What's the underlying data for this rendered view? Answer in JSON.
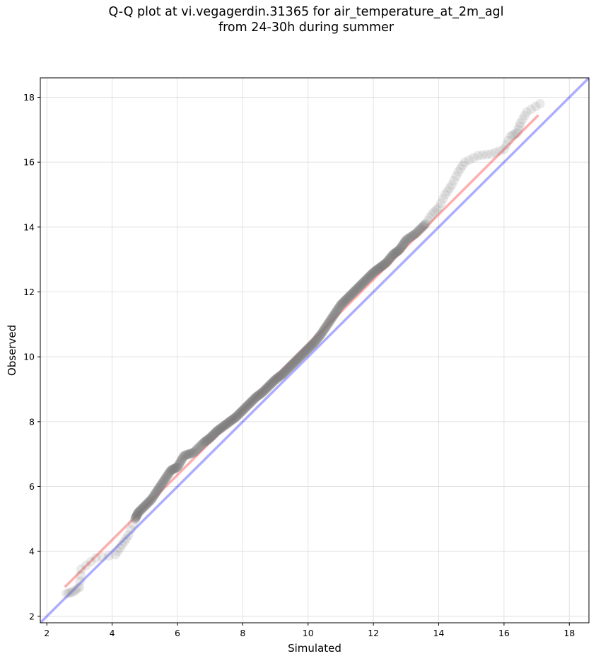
{
  "title": {
    "line1": "Q-Q plot at vi.vegagerdin.31365 for air_temperature_at_2m_agl",
    "line2": "from 24-30h during summer"
  },
  "chart_data": {
    "type": "scatter",
    "title": "Q-Q plot at vi.vegagerdin.31365 for air_temperature_at_2m_agl from 24-30h during summer",
    "xlabel": "Simulated",
    "ylabel": "Observed",
    "xlim": [
      1.8,
      18.6
    ],
    "ylim": [
      1.8,
      18.6
    ],
    "xticks": [
      2,
      4,
      6,
      8,
      10,
      12,
      14,
      16,
      18
    ],
    "yticks": [
      2,
      4,
      6,
      8,
      10,
      12,
      14,
      16,
      18
    ],
    "grid": true,
    "reference_line": {
      "name": "identity",
      "color": "#0000ff",
      "x": [
        1.8,
        18.6
      ],
      "y": [
        1.8,
        18.6
      ]
    },
    "fit_line": {
      "name": "linear fit",
      "color": "#ff0000",
      "x": [
        2.55,
        17.05
      ],
      "y": [
        2.9,
        17.45
      ]
    },
    "points": [
      [
        2.6,
        2.7
      ],
      [
        2.8,
        2.75
      ],
      [
        3.0,
        2.9
      ],
      [
        3.05,
        3.45
      ],
      [
        3.5,
        3.8
      ],
      [
        4.1,
        3.9
      ],
      [
        4.3,
        4.2
      ],
      [
        4.5,
        4.5
      ],
      [
        4.7,
        5.0
      ],
      [
        4.8,
        5.2
      ],
      [
        5.0,
        5.4
      ],
      [
        5.2,
        5.6
      ],
      [
        5.4,
        5.9
      ],
      [
        5.6,
        6.2
      ],
      [
        5.8,
        6.5
      ],
      [
        6.0,
        6.6
      ],
      [
        6.2,
        6.95
      ],
      [
        6.5,
        7.05
      ],
      [
        6.8,
        7.35
      ],
      [
        7.0,
        7.5
      ],
      [
        7.2,
        7.7
      ],
      [
        7.4,
        7.85
      ],
      [
        7.6,
        8.0
      ],
      [
        7.8,
        8.15
      ],
      [
        8.0,
        8.35
      ],
      [
        8.2,
        8.55
      ],
      [
        8.4,
        8.75
      ],
      [
        8.6,
        8.9
      ],
      [
        8.8,
        9.1
      ],
      [
        9.0,
        9.3
      ],
      [
        9.2,
        9.45
      ],
      [
        9.4,
        9.65
      ],
      [
        9.6,
        9.85
      ],
      [
        9.8,
        10.05
      ],
      [
        10.0,
        10.25
      ],
      [
        10.2,
        10.45
      ],
      [
        10.4,
        10.7
      ],
      [
        10.6,
        11.0
      ],
      [
        10.8,
        11.3
      ],
      [
        11.0,
        11.6
      ],
      [
        11.2,
        11.8
      ],
      [
        11.4,
        12.0
      ],
      [
        11.6,
        12.2
      ],
      [
        11.8,
        12.4
      ],
      [
        12.0,
        12.6
      ],
      [
        12.2,
        12.75
      ],
      [
        12.4,
        12.9
      ],
      [
        12.6,
        13.15
      ],
      [
        12.8,
        13.3
      ],
      [
        13.0,
        13.6
      ],
      [
        13.3,
        13.8
      ],
      [
        13.6,
        14.1
      ],
      [
        13.8,
        14.4
      ],
      [
        14.0,
        14.6
      ],
      [
        14.2,
        15.0
      ],
      [
        14.4,
        15.3
      ],
      [
        14.6,
        15.7
      ],
      [
        14.8,
        16.0
      ],
      [
        15.2,
        16.2
      ],
      [
        15.6,
        16.25
      ],
      [
        16.0,
        16.4
      ],
      [
        16.2,
        16.8
      ],
      [
        16.4,
        16.9
      ],
      [
        16.5,
        17.2
      ],
      [
        16.7,
        17.55
      ],
      [
        17.1,
        17.8
      ]
    ]
  }
}
